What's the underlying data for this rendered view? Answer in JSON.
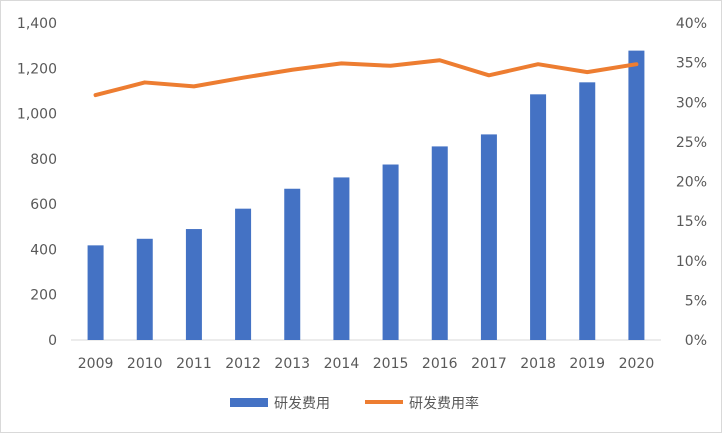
{
  "chart_data": {
    "type": "bar",
    "categories": [
      "2009",
      "2010",
      "2011",
      "2012",
      "2013",
      "2014",
      "2015",
      "2016",
      "2017",
      "2018",
      "2019",
      "2020"
    ],
    "series": [
      {
        "name": "研发费用",
        "type": "bar",
        "axis": "left",
        "color": "#4472C4",
        "values": [
          418,
          447,
          490,
          580,
          668,
          718,
          775,
          855,
          908,
          1085,
          1138,
          1278
        ]
      },
      {
        "name": "研发费用率",
        "type": "line",
        "axis": "right",
        "color": "#ED7D31",
        "values": [
          0.309,
          0.325,
          0.32,
          0.331,
          0.341,
          0.349,
          0.346,
          0.353,
          0.334,
          0.348,
          0.338,
          0.348
        ]
      }
    ],
    "y_left": {
      "min": 0,
      "max": 1400,
      "ticks": [
        0,
        200,
        400,
        600,
        800,
        1000,
        1200,
        1400
      ],
      "tick_labels": [
        "0",
        "200",
        "400",
        "600",
        "800",
        "1,000",
        "1,200",
        "1,400"
      ]
    },
    "y_right": {
      "min": 0,
      "max": 0.4,
      "ticks": [
        0,
        0.05,
        0.1,
        0.15,
        0.2,
        0.25,
        0.3,
        0.35,
        0.4
      ],
      "tick_labels": [
        "0%",
        "5%",
        "10%",
        "15%",
        "20%",
        "25%",
        "30%",
        "35%",
        "40%"
      ]
    },
    "grid": false,
    "legend": {
      "position": "bottom"
    }
  }
}
